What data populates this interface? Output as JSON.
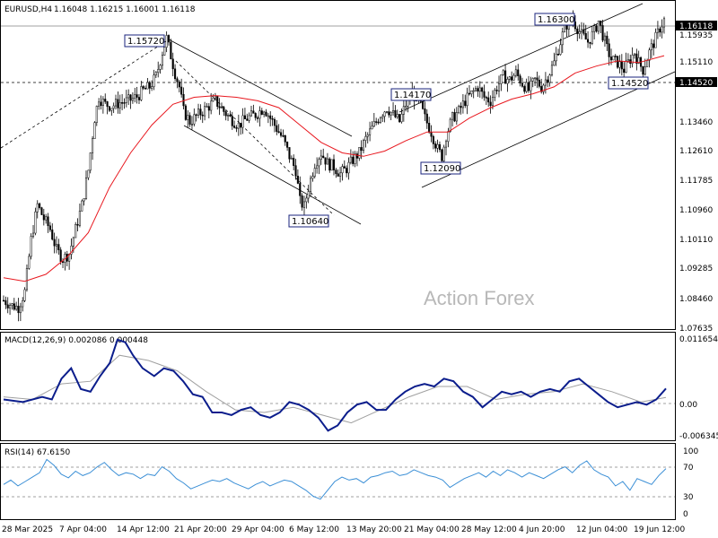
{
  "header": {
    "symbol_timeframe": "EURUSD,H4",
    "ohlc": "1.16048 1.16215 1.16001 1.16118"
  },
  "watermark": "Action Forex",
  "colors": {
    "candle": "#000000",
    "ma": "#e8181f",
    "macd": "#0b1d8c",
    "signal": "#a0a0a0",
    "rsi": "#3b8fd6",
    "grid": "#c8c8c8",
    "hline": "#606060",
    "price_tag_bg": "#000000"
  },
  "chart_data": [
    {
      "type": "candlestick",
      "title": "EURUSD,H4",
      "ylim": [
        1.073,
        1.166
      ],
      "y_ticks": [
        "1.16118",
        "1.15935",
        "1.15110",
        "1.14520",
        "1.13460",
        "1.12610",
        "1.11785",
        "1.10960",
        "1.10110",
        "1.09285",
        "1.08460",
        "1.07635"
      ],
      "x_ticks": [
        "28 Mar 2025",
        "7 Apr 04:00",
        "14 Apr 12:00",
        "21 Apr 20:00",
        "29 Apr 04:00",
        "6 May 12:00",
        "13 May 20:00",
        "21 May 04:00",
        "28 May 12:00",
        "4 Jun 20:00",
        "12 Jun 04:00",
        "19 Jun 12:00"
      ],
      "current_price": "1.16118",
      "horizontal_level": "1.14520",
      "annotations": [
        "1.15720",
        "1.10640",
        "1.14170",
        "1.12090",
        "1.16300",
        "1.14520"
      ],
      "close_path": [
        [
          0,
          1.0805
        ],
        [
          8,
          1.079
        ],
        [
          14,
          1.0785
        ],
        [
          20,
          1.083
        ],
        [
          26,
          1.098
        ],
        [
          32,
          1.108
        ],
        [
          38,
          1.104
        ],
        [
          44,
          1.101
        ],
        [
          50,
          1.095
        ],
        [
          56,
          1.0925
        ],
        [
          62,
          1.094
        ],
        [
          68,
          1.101
        ],
        [
          74,
          1.108
        ],
        [
          80,
          1.118
        ],
        [
          86,
          1.133
        ],
        [
          90,
          1.139
        ],
        [
          96,
          1.137
        ],
        [
          102,
          1.1365
        ],
        [
          110,
          1.1375
        ],
        [
          118,
          1.138
        ],
        [
          126,
          1.1392
        ],
        [
          132,
          1.141
        ],
        [
          138,
          1.142
        ],
        [
          144,
          1.145
        ],
        [
          150,
          1.152
        ],
        [
          154,
          1.156
        ],
        [
          158,
          1.151
        ],
        [
          162,
          1.146
        ],
        [
          166,
          1.142
        ],
        [
          170,
          1.135
        ],
        [
          176,
          1.132
        ],
        [
          184,
          1.134
        ],
        [
          192,
          1.136
        ],
        [
          200,
          1.138
        ],
        [
          208,
          1.135
        ],
        [
          214,
          1.133
        ],
        [
          222,
          1.131
        ],
        [
          230,
          1.133
        ],
        [
          238,
          1.134
        ],
        [
          246,
          1.136
        ],
        [
          252,
          1.133
        ],
        [
          258,
          1.13
        ],
        [
          264,
          1.127
        ],
        [
          270,
          1.122
        ],
        [
          276,
          1.118
        ],
        [
          280,
          1.109
        ],
        [
          284,
          1.1075
        ],
        [
          288,
          1.113
        ],
        [
          294,
          1.12
        ],
        [
          300,
          1.123
        ],
        [
          306,
          1.12
        ],
        [
          312,
          1.119
        ],
        [
          318,
          1.117
        ],
        [
          324,
          1.1185
        ],
        [
          330,
          1.121
        ],
        [
          336,
          1.123
        ],
        [
          342,
          1.127
        ],
        [
          348,
          1.13
        ],
        [
          356,
          1.134
        ],
        [
          362,
          1.136
        ],
        [
          368,
          1.134
        ],
        [
          374,
          1.132
        ],
        [
          380,
          1.137
        ],
        [
          386,
          1.14
        ],
        [
          392,
          1.138
        ],
        [
          398,
          1.133
        ],
        [
          404,
          1.129
        ],
        [
          410,
          1.124
        ],
        [
          414,
          1.122
        ],
        [
          418,
          1.128
        ],
        [
          424,
          1.133
        ],
        [
          430,
          1.135
        ],
        [
          436,
          1.138
        ],
        [
          442,
          1.14
        ],
        [
          448,
          1.142
        ],
        [
          454,
          1.139
        ],
        [
          460,
          1.138
        ],
        [
          466,
          1.142
        ],
        [
          472,
          1.145
        ],
        [
          478,
          1.144
        ],
        [
          484,
          1.146
        ],
        [
          490,
          1.143
        ],
        [
          496,
          1.141
        ],
        [
          502,
          1.144
        ],
        [
          508,
          1.142
        ],
        [
          514,
          1.145
        ],
        [
          520,
          1.149
        ],
        [
          526,
          1.155
        ],
        [
          530,
          1.159
        ],
        [
          536,
          1.162
        ],
        [
          540,
          1.16
        ],
        [
          546,
          1.157
        ],
        [
          552,
          1.155
        ],
        [
          558,
          1.158
        ],
        [
          562,
          1.161
        ],
        [
          566,
          1.157
        ],
        [
          570,
          1.153
        ],
        [
          574,
          1.15
        ],
        [
          580,
          1.149
        ],
        [
          586,
          1.147
        ],
        [
          592,
          1.15
        ],
        [
          596,
          1.152
        ],
        [
          600,
          1.149
        ],
        [
          604,
          1.147
        ],
        [
          610,
          1.152
        ],
        [
          616,
          1.156
        ],
        [
          620,
          1.159
        ],
        [
          624,
          1.1612
        ]
      ],
      "ma_path": [
        [
          0,
          1.087
        ],
        [
          20,
          1.086
        ],
        [
          40,
          1.088
        ],
        [
          60,
          1.093
        ],
        [
          80,
          1.1
        ],
        [
          100,
          1.113
        ],
        [
          120,
          1.123
        ],
        [
          140,
          1.131
        ],
        [
          160,
          1.137
        ],
        [
          180,
          1.139
        ],
        [
          200,
          1.1395
        ],
        [
          220,
          1.139
        ],
        [
          240,
          1.138
        ],
        [
          260,
          1.136
        ],
        [
          280,
          1.131
        ],
        [
          300,
          1.126
        ],
        [
          320,
          1.123
        ],
        [
          340,
          1.122
        ],
        [
          360,
          1.1235
        ],
        [
          380,
          1.1265
        ],
        [
          400,
          1.129
        ],
        [
          420,
          1.129
        ],
        [
          440,
          1.133
        ],
        [
          460,
          1.136
        ],
        [
          480,
          1.1385
        ],
        [
          500,
          1.14
        ],
        [
          520,
          1.142
        ],
        [
          540,
          1.146
        ],
        [
          560,
          1.148
        ],
        [
          580,
          1.1495
        ],
        [
          600,
          1.149
        ],
        [
          624,
          1.151
        ]
      ]
    },
    {
      "type": "line",
      "title": "MACD(12,26,9) 0.002086 0.000448",
      "ylim": [
        -0.0075,
        0.0125
      ],
      "y_ticks": [
        "0.011654",
        "0.00",
        "-0.006345"
      ],
      "macd_path": [
        [
          0,
          0.0
        ],
        [
          20,
          -0.0005
        ],
        [
          40,
          0.0005
        ],
        [
          50,
          0.0
        ],
        [
          60,
          0.004
        ],
        [
          70,
          0.006
        ],
        [
          80,
          0.002
        ],
        [
          90,
          0.0015
        ],
        [
          100,
          0.0045
        ],
        [
          110,
          0.007
        ],
        [
          118,
          0.0115
        ],
        [
          126,
          0.011
        ],
        [
          134,
          0.0085
        ],
        [
          144,
          0.006
        ],
        [
          156,
          0.0045
        ],
        [
          166,
          0.006
        ],
        [
          176,
          0.0055
        ],
        [
          186,
          0.0035
        ],
        [
          196,
          0.001
        ],
        [
          206,
          0.0005
        ],
        [
          216,
          -0.0025
        ],
        [
          226,
          -0.0025
        ],
        [
          236,
          -0.003
        ],
        [
          246,
          -0.002
        ],
        [
          256,
          -0.0015
        ],
        [
          266,
          -0.003
        ],
        [
          276,
          -0.0035
        ],
        [
          286,
          -0.0025
        ],
        [
          296,
          -0.0005
        ],
        [
          306,
          -0.001
        ],
        [
          316,
          -0.002
        ],
        [
          326,
          -0.0035
        ],
        [
          336,
          -0.006
        ],
        [
          346,
          -0.005
        ],
        [
          356,
          -0.0025
        ],
        [
          366,
          -0.001
        ],
        [
          376,
          -0.0005
        ],
        [
          386,
          -0.002
        ],
        [
          396,
          -0.002
        ],
        [
          406,
          0.0
        ],
        [
          416,
          0.0015
        ],
        [
          426,
          0.0025
        ],
        [
          436,
          0.003
        ],
        [
          446,
          0.0025
        ],
        [
          456,
          0.004
        ],
        [
          466,
          0.0035
        ],
        [
          476,
          0.0015
        ],
        [
          486,
          0.0005
        ],
        [
          496,
          -0.0015
        ],
        [
          506,
          0.0
        ],
        [
          516,
          0.0015
        ],
        [
          526,
          0.001
        ],
        [
          536,
          0.0015
        ],
        [
          546,
          0.0005
        ],
        [
          556,
          0.0015
        ],
        [
          566,
          0.002
        ],
        [
          576,
          0.0015
        ],
        [
          586,
          0.0035
        ],
        [
          596,
          0.004
        ],
        [
          606,
          0.0025
        ],
        [
          616,
          0.001
        ],
        [
          626,
          -0.0005
        ],
        [
          636,
          -0.0015
        ],
        [
          646,
          -0.001
        ],
        [
          656,
          -0.0005
        ],
        [
          666,
          -0.001
        ],
        [
          676,
          0.0
        ],
        [
          686,
          0.0021
        ]
      ],
      "signal_path": [
        [
          0,
          0.0005
        ],
        [
          30,
          0.0
        ],
        [
          60,
          0.003
        ],
        [
          90,
          0.0035
        ],
        [
          120,
          0.0085
        ],
        [
          150,
          0.0075
        ],
        [
          180,
          0.0055
        ],
        [
          210,
          0.0015
        ],
        [
          240,
          -0.002
        ],
        [
          270,
          -0.0025
        ],
        [
          300,
          -0.0015
        ],
        [
          330,
          -0.003
        ],
        [
          360,
          -0.0045
        ],
        [
          390,
          -0.002
        ],
        [
          420,
          0.0005
        ],
        [
          450,
          0.0025
        ],
        [
          480,
          0.0025
        ],
        [
          510,
          0.0
        ],
        [
          540,
          0.001
        ],
        [
          570,
          0.0015
        ],
        [
          600,
          0.003
        ],
        [
          630,
          0.0015
        ],
        [
          660,
          -0.0005
        ],
        [
          686,
          0.0004
        ]
      ]
    },
    {
      "type": "line",
      "title": "RSI(14) 67.6150",
      "ylim": [
        0,
        100
      ],
      "y_ticks": [
        "100",
        "70",
        "30",
        "0"
      ],
      "levels": [
        70,
        30
      ],
      "rsi_path": [
        [
          0,
          46
        ],
        [
          8,
          52
        ],
        [
          16,
          44
        ],
        [
          24,
          50
        ],
        [
          32,
          56
        ],
        [
          40,
          62
        ],
        [
          48,
          80
        ],
        [
          56,
          72
        ],
        [
          64,
          60
        ],
        [
          72,
          55
        ],
        [
          80,
          64
        ],
        [
          88,
          58
        ],
        [
          96,
          62
        ],
        [
          104,
          70
        ],
        [
          112,
          76
        ],
        [
          120,
          66
        ],
        [
          128,
          58
        ],
        [
          136,
          62
        ],
        [
          144,
          60
        ],
        [
          152,
          54
        ],
        [
          160,
          60
        ],
        [
          168,
          58
        ],
        [
          176,
          70
        ],
        [
          184,
          64
        ],
        [
          192,
          54
        ],
        [
          200,
          48
        ],
        [
          208,
          40
        ],
        [
          216,
          44
        ],
        [
          224,
          48
        ],
        [
          232,
          52
        ],
        [
          240,
          50
        ],
        [
          248,
          54
        ],
        [
          256,
          48
        ],
        [
          264,
          44
        ],
        [
          272,
          40
        ],
        [
          280,
          46
        ],
        [
          288,
          50
        ],
        [
          296,
          44
        ],
        [
          304,
          48
        ],
        [
          312,
          52
        ],
        [
          320,
          50
        ],
        [
          328,
          44
        ],
        [
          336,
          38
        ],
        [
          344,
          30
        ],
        [
          352,
          26
        ],
        [
          360,
          38
        ],
        [
          368,
          50
        ],
        [
          376,
          56
        ],
        [
          384,
          52
        ],
        [
          392,
          54
        ],
        [
          400,
          48
        ],
        [
          408,
          56
        ],
        [
          416,
          58
        ],
        [
          424,
          62
        ],
        [
          432,
          64
        ],
        [
          440,
          58
        ],
        [
          448,
          60
        ],
        [
          456,
          66
        ],
        [
          464,
          62
        ],
        [
          472,
          58
        ],
        [
          480,
          56
        ],
        [
          488,
          52
        ],
        [
          496,
          42
        ],
        [
          504,
          48
        ],
        [
          512,
          54
        ],
        [
          520,
          58
        ],
        [
          528,
          62
        ],
        [
          536,
          56
        ],
        [
          544,
          64
        ],
        [
          552,
          58
        ],
        [
          560,
          66
        ],
        [
          568,
          62
        ],
        [
          576,
          56
        ],
        [
          584,
          62
        ],
        [
          592,
          58
        ],
        [
          600,
          54
        ],
        [
          608,
          60
        ],
        [
          616,
          66
        ],
        [
          624,
          70
        ],
        [
          632,
          62
        ],
        [
          640,
          72
        ],
        [
          648,
          78
        ],
        [
          656,
          66
        ],
        [
          664,
          60
        ],
        [
          672,
          56
        ],
        [
          680,
          44
        ],
        [
          688,
          50
        ],
        [
          696,
          38
        ],
        [
          704,
          54
        ],
        [
          712,
          50
        ],
        [
          720,
          46
        ],
        [
          728,
          58
        ],
        [
          736,
          67.6
        ]
      ]
    }
  ]
}
